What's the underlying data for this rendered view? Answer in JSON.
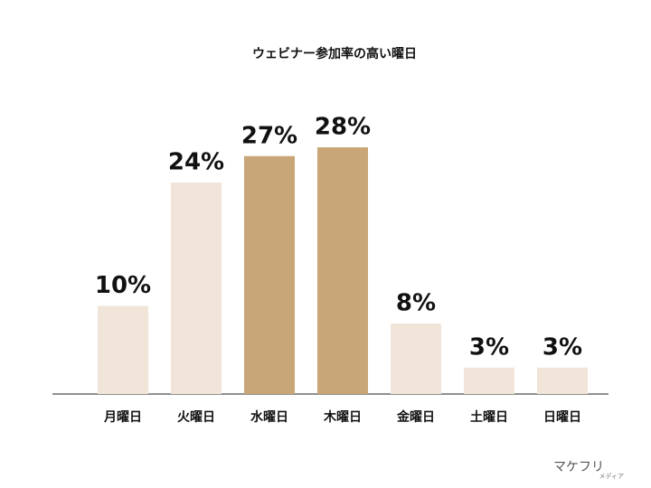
{
  "chart_data": {
    "type": "bar",
    "title": "ウェビナー参加率の高い曜日",
    "categories": [
      "月曜日",
      "火曜日",
      "水曜日",
      "木曜日",
      "金曜日",
      "土曜日",
      "日曜日"
    ],
    "values": [
      10,
      24,
      27,
      28,
      8,
      3,
      3
    ],
    "value_labels": [
      "10%",
      "24%",
      "27%",
      "28%",
      "8%",
      "3%",
      "3%"
    ],
    "colors": [
      "#f0e5d8",
      "#f0e5d8",
      "#c9a677",
      "#c9a677",
      "#f0e5d8",
      "#f0e5d8",
      "#f0e5d8"
    ],
    "ylim": [
      0,
      30
    ],
    "logo": "マケフリ",
    "logo_sub": "メディア"
  }
}
